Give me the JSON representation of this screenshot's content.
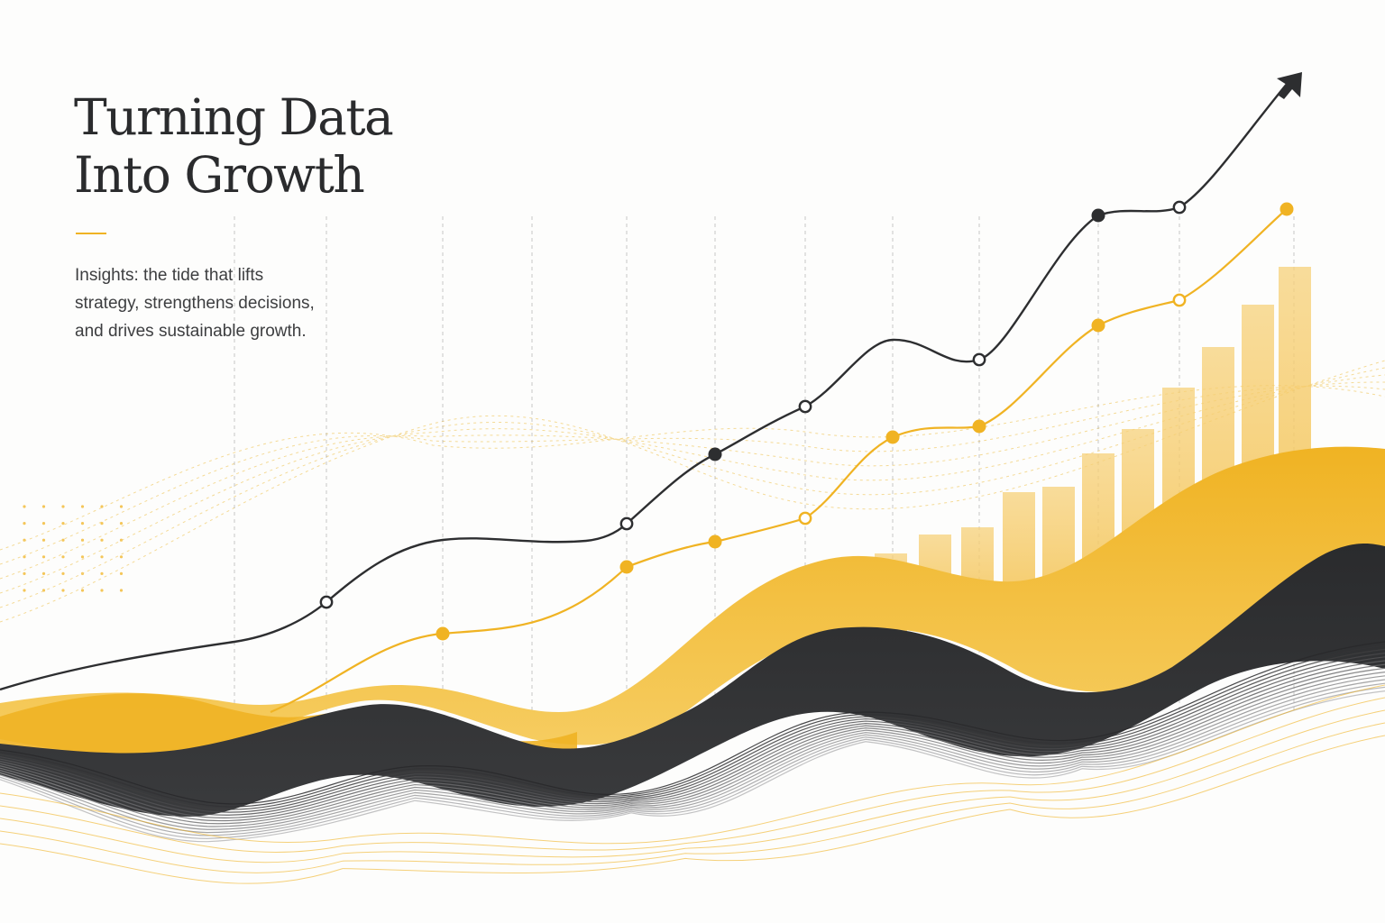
{
  "heading": {
    "line1": "Turning Data",
    "line2": "Into Growth"
  },
  "subheading": {
    "line1": "Insights: the tide that lifts",
    "line2": "strategy, strengthens decisions,",
    "line3": "and drives sustainable growth."
  },
  "colors": {
    "accent": "#f0b323",
    "dark": "#2d2e30",
    "background": "#fdfdfc"
  },
  "dark_line": {
    "trend": "rising",
    "ends_with": "arrow-icon"
  },
  "yellow_line": {
    "trend": "rising"
  },
  "bars": {
    "count": 11,
    "trend": "rising"
  }
}
